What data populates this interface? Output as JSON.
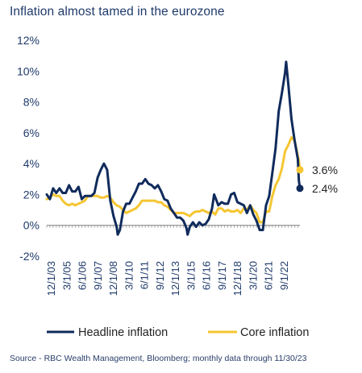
{
  "title": "Inflation almost tamed in the eurozone",
  "source": "Source - RBC Wealth Management, Bloomberg; monthly data through 11/30/23",
  "colors": {
    "headline": "#102b5c",
    "core": "#f5c632",
    "text": "#1f3a6b"
  },
  "chart_data": {
    "type": "line",
    "title": "Inflation almost tamed in the eurozone",
    "xlabel": "",
    "ylabel": "",
    "ylim": [
      -2,
      12
    ],
    "yticks": [
      "12%",
      "10%",
      "8%",
      "6%",
      "4%",
      "2%",
      "0%",
      "-2%"
    ],
    "ytick_values": [
      12,
      10,
      8,
      6,
      4,
      2,
      0,
      -2
    ],
    "xtick_labels": [
      "12/1/03",
      "3/1/05",
      "6/1/06",
      "9/1/07",
      "12/1/08",
      "3/1/10",
      "6/1/11",
      "9/1/12",
      "12/1/13",
      "3/1/15",
      "6/1/16",
      "9/1/17",
      "12/1/18",
      "3/1/20",
      "6/1/21",
      "9/1/22"
    ],
    "x_range": [
      "12/1/03",
      "11/30/23"
    ],
    "grid": false,
    "legend": "bottom",
    "series": [
      {
        "name": "Headline inflation",
        "color": "#102b5c",
        "points": [
          [
            "2003-12",
            2.0
          ],
          [
            "2004-03",
            1.7
          ],
          [
            "2004-06",
            2.4
          ],
          [
            "2004-09",
            2.1
          ],
          [
            "2004-12",
            2.4
          ],
          [
            "2005-03",
            2.1
          ],
          [
            "2005-06",
            2.1
          ],
          [
            "2005-09",
            2.6
          ],
          [
            "2005-12",
            2.2
          ],
          [
            "2006-03",
            2.2
          ],
          [
            "2006-06",
            2.5
          ],
          [
            "2006-09",
            1.7
          ],
          [
            "2006-12",
            1.9
          ],
          [
            "2007-03",
            1.9
          ],
          [
            "2007-06",
            1.9
          ],
          [
            "2007-09",
            2.1
          ],
          [
            "2007-12",
            3.1
          ],
          [
            "2008-03",
            3.6
          ],
          [
            "2008-06",
            4.0
          ],
          [
            "2008-09",
            3.6
          ],
          [
            "2008-12",
            1.6
          ],
          [
            "2009-03",
            0.6
          ],
          [
            "2009-06",
            -0.1
          ],
          [
            "2009-07",
            -0.6
          ],
          [
            "2009-09",
            -0.3
          ],
          [
            "2009-12",
            0.9
          ],
          [
            "2010-03",
            1.4
          ],
          [
            "2010-06",
            1.4
          ],
          [
            "2010-09",
            1.8
          ],
          [
            "2010-12",
            2.2
          ],
          [
            "2011-03",
            2.7
          ],
          [
            "2011-06",
            2.7
          ],
          [
            "2011-09",
            3.0
          ],
          [
            "2011-12",
            2.7
          ],
          [
            "2012-03",
            2.6
          ],
          [
            "2012-06",
            2.4
          ],
          [
            "2012-09",
            2.6
          ],
          [
            "2012-12",
            2.2
          ],
          [
            "2013-03",
            1.7
          ],
          [
            "2013-06",
            1.6
          ],
          [
            "2013-09",
            1.1
          ],
          [
            "2013-12",
            0.8
          ],
          [
            "2014-03",
            0.5
          ],
          [
            "2014-06",
            0.5
          ],
          [
            "2014-09",
            0.3
          ],
          [
            "2014-12",
            -0.2
          ],
          [
            "2015-01",
            -0.6
          ],
          [
            "2015-03",
            -0.1
          ],
          [
            "2015-06",
            0.2
          ],
          [
            "2015-09",
            -0.1
          ],
          [
            "2015-12",
            0.2
          ],
          [
            "2016-03",
            0.0
          ],
          [
            "2016-06",
            0.1
          ],
          [
            "2016-09",
            0.4
          ],
          [
            "2016-12",
            1.1
          ],
          [
            "2017-02",
            2.0
          ],
          [
            "2017-06",
            1.3
          ],
          [
            "2017-09",
            1.5
          ],
          [
            "2017-12",
            1.4
          ],
          [
            "2018-03",
            1.4
          ],
          [
            "2018-06",
            2.0
          ],
          [
            "2018-09",
            2.1
          ],
          [
            "2018-12",
            1.5
          ],
          [
            "2019-03",
            1.4
          ],
          [
            "2019-06",
            1.3
          ],
          [
            "2019-09",
            0.8
          ],
          [
            "2019-12",
            1.3
          ],
          [
            "2020-03",
            0.7
          ],
          [
            "2020-06",
            0.3
          ],
          [
            "2020-09",
            -0.3
          ],
          [
            "2020-12",
            -0.3
          ],
          [
            "2021-03",
            1.3
          ],
          [
            "2021-06",
            1.9
          ],
          [
            "2021-09",
            3.4
          ],
          [
            "2021-12",
            5.0
          ],
          [
            "2022-03",
            7.4
          ],
          [
            "2022-06",
            8.6
          ],
          [
            "2022-09",
            9.9
          ],
          [
            "2022-10",
            10.6
          ],
          [
            "2022-12",
            9.2
          ],
          [
            "2023-03",
            6.9
          ],
          [
            "2023-06",
            5.5
          ],
          [
            "2023-09",
            4.3
          ],
          [
            "2023-10",
            2.9
          ],
          [
            "2023-11",
            2.4
          ]
        ]
      },
      {
        "name": "Core inflation",
        "color": "#f5c632",
        "points": [
          [
            "2003-12",
            1.7
          ],
          [
            "2004-03",
            1.8
          ],
          [
            "2004-06",
            2.0
          ],
          [
            "2004-09",
            1.9
          ],
          [
            "2004-12",
            1.9
          ],
          [
            "2005-03",
            1.6
          ],
          [
            "2005-06",
            1.4
          ],
          [
            "2005-09",
            1.3
          ],
          [
            "2005-12",
            1.4
          ],
          [
            "2006-03",
            1.3
          ],
          [
            "2006-06",
            1.4
          ],
          [
            "2006-09",
            1.5
          ],
          [
            "2006-12",
            1.6
          ],
          [
            "2007-03",
            1.9
          ],
          [
            "2007-06",
            1.9
          ],
          [
            "2007-09",
            1.9
          ],
          [
            "2007-12",
            1.9
          ],
          [
            "2008-03",
            1.8
          ],
          [
            "2008-06",
            1.8
          ],
          [
            "2008-09",
            1.9
          ],
          [
            "2008-12",
            1.8
          ],
          [
            "2009-03",
            1.5
          ],
          [
            "2009-06",
            1.3
          ],
          [
            "2009-09",
            1.2
          ],
          [
            "2009-12",
            1.0
          ],
          [
            "2010-03",
            0.8
          ],
          [
            "2010-06",
            0.9
          ],
          [
            "2010-09",
            1.0
          ],
          [
            "2010-12",
            1.1
          ],
          [
            "2011-03",
            1.3
          ],
          [
            "2011-06",
            1.6
          ],
          [
            "2011-09",
            1.6
          ],
          [
            "2011-12",
            1.6
          ],
          [
            "2012-03",
            1.6
          ],
          [
            "2012-06",
            1.6
          ],
          [
            "2012-09",
            1.5
          ],
          [
            "2012-12",
            1.5
          ],
          [
            "2013-03",
            1.3
          ],
          [
            "2013-06",
            1.2
          ],
          [
            "2013-09",
            1.0
          ],
          [
            "2013-12",
            0.8
          ],
          [
            "2014-03",
            0.8
          ],
          [
            "2014-06",
            0.8
          ],
          [
            "2014-09",
            0.8
          ],
          [
            "2014-12",
            0.7
          ],
          [
            "2015-03",
            0.6
          ],
          [
            "2015-06",
            0.8
          ],
          [
            "2015-09",
            0.9
          ],
          [
            "2015-12",
            0.9
          ],
          [
            "2016-03",
            1.0
          ],
          [
            "2016-06",
            0.9
          ],
          [
            "2016-09",
            0.8
          ],
          [
            "2016-12",
            0.9
          ],
          [
            "2017-03",
            0.7
          ],
          [
            "2017-06",
            1.1
          ],
          [
            "2017-09",
            1.1
          ],
          [
            "2017-12",
            0.9
          ],
          [
            "2018-03",
            1.0
          ],
          [
            "2018-06",
            0.9
          ],
          [
            "2018-09",
            0.9
          ],
          [
            "2018-12",
            1.0
          ],
          [
            "2019-03",
            0.8
          ],
          [
            "2019-06",
            1.1
          ],
          [
            "2019-09",
            1.0
          ],
          [
            "2019-12",
            1.3
          ],
          [
            "2020-03",
            1.0
          ],
          [
            "2020-06",
            0.8
          ],
          [
            "2020-09",
            0.2
          ],
          [
            "2020-12",
            0.2
          ],
          [
            "2021-03",
            0.9
          ],
          [
            "2021-06",
            0.9
          ],
          [
            "2021-09",
            1.9
          ],
          [
            "2021-12",
            2.6
          ],
          [
            "2022-03",
            3.0
          ],
          [
            "2022-06",
            3.7
          ],
          [
            "2022-09",
            4.8
          ],
          [
            "2022-12",
            5.2
          ],
          [
            "2023-03",
            5.7
          ],
          [
            "2023-06",
            5.5
          ],
          [
            "2023-09",
            4.5
          ],
          [
            "2023-10",
            4.2
          ],
          [
            "2023-11",
            3.6
          ]
        ]
      }
    ],
    "annotations": [
      {
        "text": "3.6%",
        "series": "Core inflation",
        "x": "2023-11",
        "y": 3.6
      },
      {
        "text": "2.4%",
        "series": "Headline inflation",
        "x": "2023-11",
        "y": 2.4
      }
    ]
  }
}
